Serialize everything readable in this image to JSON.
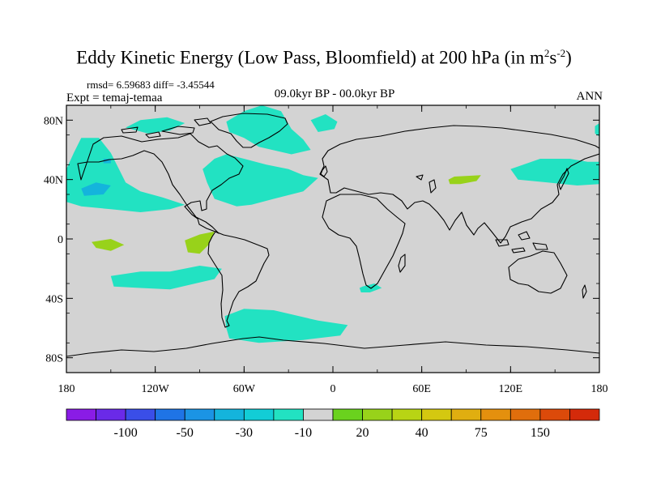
{
  "title": {
    "main": "Eddy Kinetic Energy (Low Pass, Bloomfield) at 200 hPa (in m",
    "sup1": "2",
    "mid": "s",
    "sup2": "-2",
    "close": ")"
  },
  "stats": "rmsd= 6.59683 diff= -3.45544",
  "expt": "Expt = temaj-temaa",
  "period": "09.0kyr BP - 00.0kyr BP",
  "season": "ANN",
  "chart_data": {
    "type": "heatmap",
    "projection": "cylindrical equidistant",
    "field": "EKE difference at 200 hPa",
    "x_ticks": [
      "180",
      "120W",
      "60W",
      "0",
      "60E",
      "120E",
      "180"
    ],
    "y_ticks": [
      "80N",
      "40N",
      "0",
      "40S",
      "80S"
    ],
    "xlim": [
      -180,
      180
    ],
    "ylim": [
      -90,
      90
    ],
    "background_color": "#d3d3d3",
    "colorbar": {
      "colors": [
        "#8a1ce6",
        "#6a2ae8",
        "#3a4ee8",
        "#1f74e6",
        "#1b94e4",
        "#14b4dc",
        "#12cdd6",
        "#22e2c2",
        "#d3d3d3",
        "#6ad21e",
        "#98d21a",
        "#b8d414",
        "#d4c810",
        "#e0ae10",
        "#e4900e",
        "#e06e0c",
        "#dc4a0a",
        "#d42a0a"
      ],
      "tick_labels": [
        "-100",
        "-50",
        "-30",
        "-10",
        "20",
        "40",
        "75",
        "150"
      ],
      "tick_after_box": [
        2,
        4,
        6,
        8,
        10,
        12,
        14,
        16
      ]
    },
    "regions": [
      {
        "name": "north-pacific-band",
        "level": "-10",
        "lonlat": [
          [
            -180,
            47
          ],
          [
            -175,
            58
          ],
          [
            -170,
            68
          ],
          [
            -158,
            68
          ],
          [
            -150,
            58
          ],
          [
            -145,
            48
          ],
          [
            -140,
            38
          ],
          [
            -130,
            32
          ],
          [
            -115,
            28
          ],
          [
            -100,
            23
          ],
          [
            -110,
            20
          ],
          [
            -130,
            18
          ],
          [
            -150,
            20
          ],
          [
            -170,
            22
          ],
          [
            -180,
            25
          ]
        ]
      },
      {
        "name": "north-pacific-core",
        "level": "-30",
        "lonlat": [
          [
            -170,
            34
          ],
          [
            -160,
            38
          ],
          [
            -150,
            36
          ],
          [
            -155,
            30
          ],
          [
            -168,
            29
          ]
        ]
      },
      {
        "name": "north-pacific-spot",
        "level": "-30",
        "lonlat": [
          [
            -155,
            54
          ],
          [
            -150,
            54
          ],
          [
            -150,
            51
          ],
          [
            -155,
            51
          ]
        ]
      },
      {
        "name": "arctic-canada",
        "level": "-10",
        "lonlat": [
          [
            -140,
            75
          ],
          [
            -130,
            80
          ],
          [
            -112,
            82
          ],
          [
            -100,
            78
          ],
          [
            -110,
            73
          ],
          [
            -125,
            71
          ]
        ]
      },
      {
        "name": "north-atlantic",
        "level": "-10",
        "lonlat": [
          [
            -88,
            47
          ],
          [
            -80,
            54
          ],
          [
            -72,
            57
          ],
          [
            -60,
            54
          ],
          [
            -45,
            50
          ],
          [
            -30,
            47
          ],
          [
            -20,
            43
          ],
          [
            -10,
            41
          ],
          [
            -20,
            32
          ],
          [
            -40,
            27
          ],
          [
            -55,
            23
          ],
          [
            -65,
            22
          ],
          [
            -80,
            27
          ],
          [
            -85,
            38
          ]
        ]
      },
      {
        "name": "greenland-arctic",
        "level": "-10",
        "lonlat": [
          [
            -72,
            79
          ],
          [
            -60,
            86
          ],
          [
            -48,
            90
          ],
          [
            -35,
            86
          ],
          [
            -28,
            74
          ],
          [
            -20,
            67
          ],
          [
            -15,
            60
          ],
          [
            -28,
            57
          ],
          [
            -50,
            62
          ],
          [
            -60,
            68
          ],
          [
            -70,
            72
          ]
        ]
      },
      {
        "name": "north-atlantic-upper",
        "level": "-10",
        "lonlat": [
          [
            -15,
            80
          ],
          [
            -5,
            84
          ],
          [
            3,
            79
          ],
          [
            1,
            74
          ],
          [
            -10,
            72
          ]
        ]
      },
      {
        "name": "east-pacific",
        "level": "-10",
        "lonlat": [
          [
            120,
            47
          ],
          [
            140,
            54
          ],
          [
            160,
            54
          ],
          [
            172,
            52
          ],
          [
            180,
            52
          ],
          [
            180,
            37
          ],
          [
            165,
            36
          ],
          [
            145,
            38
          ],
          [
            125,
            40
          ]
        ]
      },
      {
        "name": "east-pacific-top",
        "level": "-10",
        "lonlat": [
          [
            177,
            76
          ],
          [
            180,
            78
          ],
          [
            180,
            69
          ],
          [
            177,
            71
          ]
        ]
      },
      {
        "name": "tropical-pacific-green",
        "level": "20",
        "lonlat": [
          [
            -163,
            -2
          ],
          [
            -150,
            0
          ],
          [
            -141,
            -4
          ],
          [
            -150,
            -8
          ],
          [
            -160,
            -6
          ]
        ]
      },
      {
        "name": "tropical-pacific-green-2",
        "level": "20",
        "lonlat": [
          [
            -100,
            -1
          ],
          [
            -90,
            3
          ],
          [
            -80,
            5
          ],
          [
            -84,
            -4
          ],
          [
            -90,
            -10
          ],
          [
            -98,
            -9
          ]
        ]
      },
      {
        "name": "south-pacific",
        "level": "-10",
        "lonlat": [
          [
            -150,
            -25
          ],
          [
            -130,
            -22
          ],
          [
            -110,
            -22
          ],
          [
            -90,
            -18
          ],
          [
            -75,
            -20
          ],
          [
            -80,
            -27
          ],
          [
            -110,
            -34
          ],
          [
            -130,
            -33
          ],
          [
            -148,
            -32
          ]
        ]
      },
      {
        "name": "southern-ocean",
        "level": "-10",
        "lonlat": [
          [
            -73,
            -52
          ],
          [
            -60,
            -47
          ],
          [
            -40,
            -48
          ],
          [
            -10,
            -55
          ],
          [
            10,
            -58
          ],
          [
            5,
            -65
          ],
          [
            -20,
            -68
          ],
          [
            -50,
            -70
          ],
          [
            -70,
            -67
          ],
          [
            -72,
            -60
          ]
        ]
      },
      {
        "name": "south-africa",
        "level": "-10",
        "lonlat": [
          [
            18,
            -33
          ],
          [
            20,
            -32
          ],
          [
            28,
            -30
          ],
          [
            33,
            -33
          ],
          [
            25,
            -36
          ],
          [
            19,
            -36
          ]
        ]
      },
      {
        "name": "asia-green",
        "level": "20",
        "lonlat": [
          [
            78,
            40
          ],
          [
            82,
            42
          ],
          [
            100,
            43
          ],
          [
            97,
            39
          ],
          [
            86,
            37
          ],
          [
            79,
            37
          ]
        ]
      }
    ]
  }
}
